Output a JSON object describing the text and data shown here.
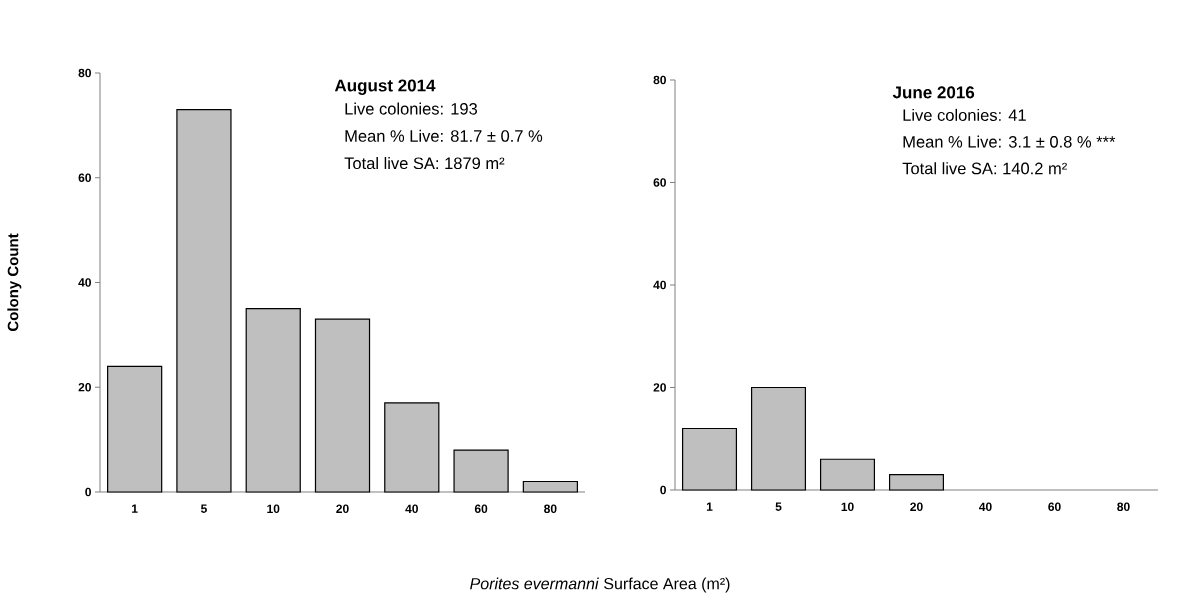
{
  "chart_data": [
    {
      "type": "bar",
      "title": "August 2014",
      "ylabel": "Colony Count",
      "xlabel": "*Porites evermanni* Surface Area (m²)",
      "annotations": [
        "Live colonies: 193",
        "Mean % Live: 81.7 ± 0.7 %",
        "Total live SA: 1879 m²"
      ],
      "categories": [
        "1",
        "5",
        "10",
        "20",
        "40",
        "60",
        "80"
      ],
      "values": [
        24,
        73,
        35,
        33,
        17,
        8,
        2
      ],
      "color": "#bfbfbf",
      "ylim": [
        0,
        80
      ],
      "yticks": [
        0,
        20,
        40,
        60,
        80
      ],
      "grid": false
    },
    {
      "type": "bar",
      "title": "June 2016",
      "annotations": [
        "Live colonies: 41",
        "Mean % Live: 3.1 ± 0.8 % ***",
        "Total live SA: 140.2 m²"
      ],
      "categories": [
        "1",
        "5",
        "10",
        "20",
        "40",
        "60",
        "80"
      ],
      "values": [
        12,
        20,
        6,
        3,
        0,
        0,
        0
      ],
      "color": "#bfbfbf",
      "ylim": [
        0,
        80
      ],
      "yticks": [
        0,
        20,
        40,
        60,
        80
      ],
      "grid": false
    }
  ]
}
